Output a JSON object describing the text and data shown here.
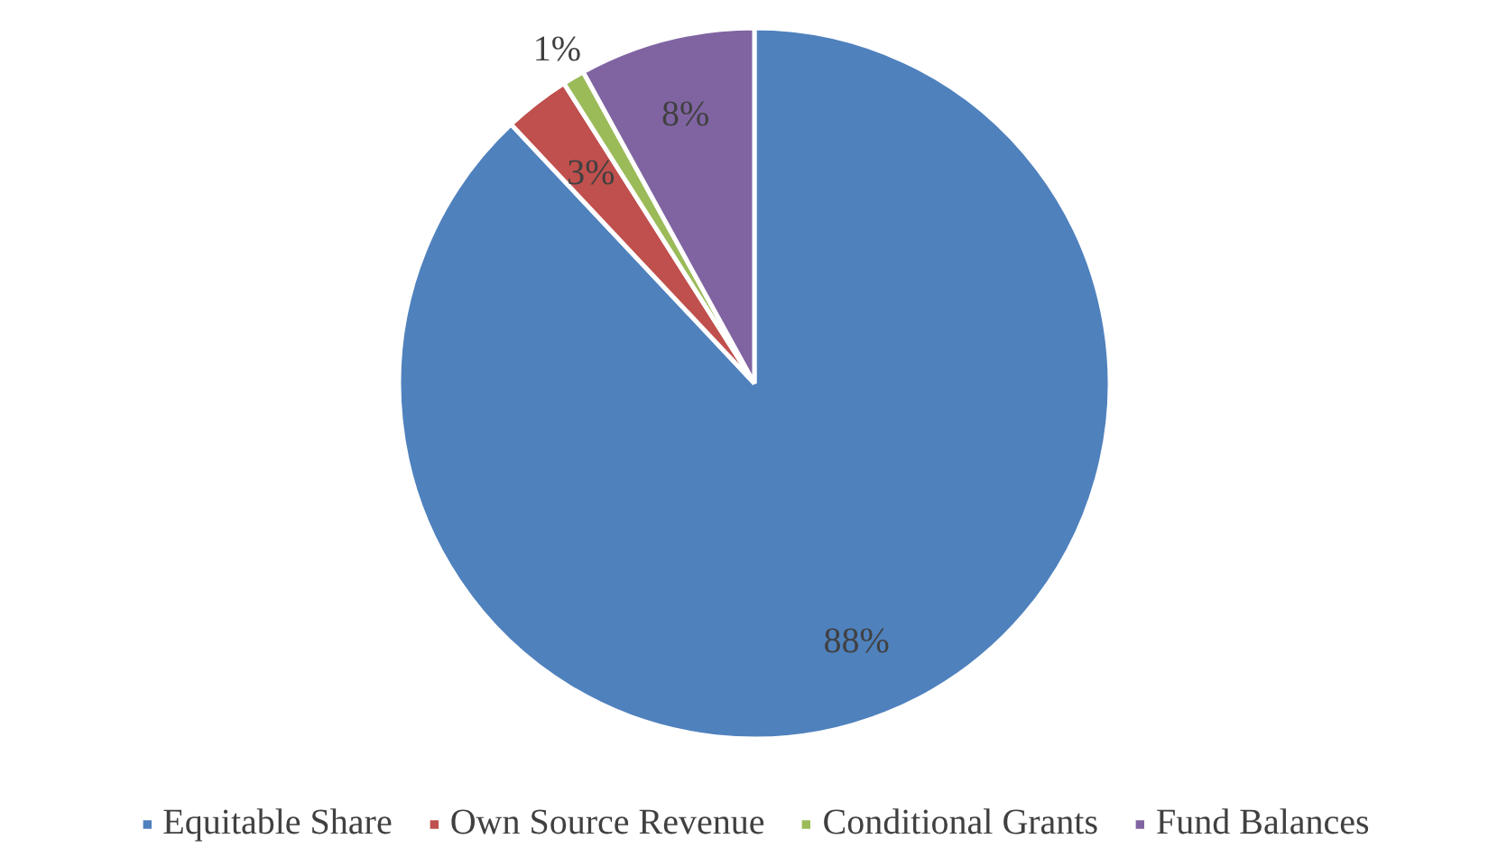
{
  "chart_data": {
    "type": "pie",
    "categories": [
      "Equitable Share",
      "Own Source Revenue",
      "Conditional Grants",
      "Fund Balances"
    ],
    "values": [
      88,
      3,
      1,
      8
    ],
    "colors": [
      "#4f81bd",
      "#c0504d",
      "#9bbb59",
      "#8064a2"
    ],
    "value_labels": [
      "88%",
      "3%",
      "1%",
      "8%"
    ],
    "legend": "bottom"
  }
}
